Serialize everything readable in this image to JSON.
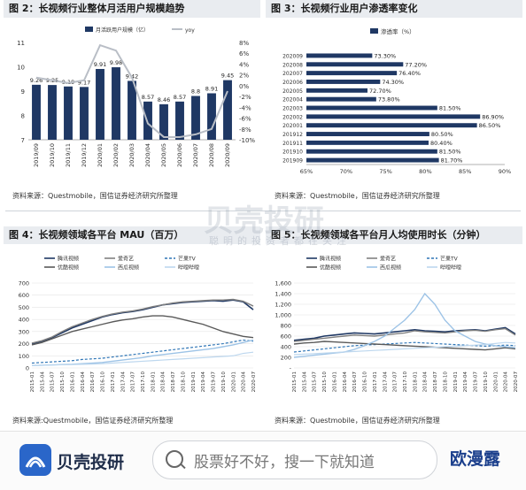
{
  "panels": {
    "p2": {
      "title": "图 2：长视频行业整体月活用户规模趋势",
      "source": "资料来源：Questmobile，国信证券经济研究所整理"
    },
    "p3": {
      "title": "图 3：长视频行业用户渗透率变化",
      "source": "资料来源：Questmobile，国信证券经济研究所整理"
    },
    "p4": {
      "title": "图 4：长视频领域各平台 MAU（百万）",
      "source": "资料来源:Questmobile，国信证券经济研究所整理"
    },
    "p5": {
      "title": "图 5：长视频领域各平台月人均使用时长（分钟）",
      "source": "资料来源：Questmobile，国信证券经济研究所整理"
    }
  },
  "watermark": {
    "main": "贝壳投研",
    "sub": "聪明的投资者都在关注"
  },
  "footer": {
    "logo_text": "贝壳投研",
    "search_placeholder": "股票好不好，搜一下就知道",
    "brand": "欧漫露"
  },
  "colors": {
    "navy": "#1f3864",
    "grey": "#b9bec6",
    "blue_line": "#2e75b6",
    "light_blue": "#9dc3e6",
    "dark": "#333333"
  },
  "chart_data": [
    {
      "id": "mau_trend",
      "type": "bar",
      "legend": [
        "月活跃用户规模（亿）",
        "yoy"
      ],
      "categories": [
        "2019/09",
        "2019/10",
        "2019/11",
        "2019/12",
        "2020/01",
        "2020/02",
        "2020/03",
        "2020/04",
        "2020/05",
        "2020/06",
        "2020/07",
        "2020/08",
        "2020/09"
      ],
      "series": [
        {
          "name": "月活跃用户规模（亿）",
          "values": [
            9.26,
            9.25,
            9.19,
            9.17,
            9.91,
            9.98,
            9.42,
            8.57,
            8.46,
            8.57,
            8.8,
            8.91,
            9.45
          ],
          "axis": "left"
        },
        {
          "name": "yoy",
          "values": [
            1.5,
            1.0,
            0.5,
            1.0,
            7.5,
            6.5,
            1.5,
            -7.0,
            -9.5,
            -9.5,
            -9.0,
            -8.0,
            -1.0
          ],
          "axis": "right"
        }
      ],
      "y_left": {
        "range": [
          7,
          11
        ],
        "ticks": [
          "7",
          "8",
          "9",
          "10",
          "11"
        ]
      },
      "y_right": {
        "range": [
          -10,
          8
        ],
        "ticks": [
          "8%",
          "6%",
          "4%",
          "2%",
          "0%",
          "-2%",
          "-4%",
          "-6%",
          "-8%",
          "-10%"
        ]
      },
      "data_labels": [
        "9.26",
        "9.25",
        "9.19",
        "9.17",
        "9.91",
        "9.98",
        "9.42",
        "8.57",
        "8.46",
        "8.57",
        "8.8",
        "8.91",
        "9.45"
      ]
    },
    {
      "id": "penetration",
      "type": "bar",
      "orientation": "horizontal",
      "legend": [
        "渗透率（%）"
      ],
      "categories": [
        "202009",
        "202008",
        "202007",
        "202006",
        "202005",
        "202004",
        "202003",
        "202002",
        "202001",
        "201912",
        "201911",
        "201910",
        "201909"
      ],
      "values": [
        73.3,
        77.2,
        76.4,
        74.3,
        72.7,
        73.8,
        81.5,
        86.9,
        86.5,
        80.5,
        80.4,
        81.5,
        81.7
      ],
      "data_labels": [
        "73.30%",
        "77.20%",
        "76.40%",
        "74.30%",
        "72.70%",
        "73.80%",
        "81.50%",
        "86.90%",
        "86.50%",
        "80.50%",
        "80.40%",
        "81.50%",
        "81.70%"
      ],
      "x_range": [
        65,
        90
      ],
      "x_ticks": [
        "65%",
        "70%",
        "75%",
        "80%",
        "85%",
        "90%"
      ]
    },
    {
      "id": "platform_mau",
      "type": "line",
      "legend": [
        "腾讯视频",
        "爱奇艺",
        "芒果TV",
        "优酷视频",
        "西瓜视频",
        "哔哩哔哩"
      ],
      "y_range": [
        0,
        700
      ],
      "y_ticks": [
        "0",
        "100",
        "200",
        "300",
        "400",
        "500",
        "600",
        "700"
      ],
      "x_labels": [
        "2015-01",
        "2015-04",
        "2015-07",
        "2015-10",
        "2016-01",
        "2016-04",
        "2016-07",
        "2016-10",
        "2017-01",
        "2017-04",
        "2017-07",
        "2017-10",
        "2018-01",
        "2018-04",
        "2018-07",
        "2018-10",
        "2019-01",
        "2019-04",
        "2019-07",
        "2019-10",
        "2020-01",
        "2020-04",
        "2020-07"
      ],
      "series": [
        {
          "name": "腾讯视频",
          "values": [
            200,
            220,
            250,
            290,
            330,
            360,
            390,
            420,
            440,
            455,
            465,
            480,
            500,
            520,
            530,
            540,
            545,
            550,
            555,
            550,
            560,
            545,
            480
          ]
        },
        {
          "name": "爱奇艺",
          "values": [
            205,
            225,
            255,
            300,
            340,
            370,
            400,
            425,
            445,
            460,
            470,
            485,
            505,
            520,
            535,
            545,
            550,
            555,
            560,
            560,
            565,
            550,
            510
          ]
        },
        {
          "name": "芒果TV",
          "values": [
            40,
            45,
            50,
            55,
            60,
            70,
            75,
            80,
            90,
            100,
            110,
            120,
            130,
            140,
            150,
            160,
            170,
            180,
            190,
            200,
            215,
            230,
            220
          ]
        },
        {
          "name": "优酷视频",
          "values": [
            190,
            210,
            240,
            270,
            300,
            320,
            340,
            360,
            380,
            395,
            405,
            420,
            430,
            430,
            420,
            400,
            380,
            360,
            330,
            300,
            280,
            260,
            250
          ]
        },
        {
          "name": "西瓜视频",
          "values": [
            20,
            22,
            25,
            28,
            30,
            35,
            40,
            45,
            55,
            65,
            75,
            85,
            100,
            110,
            120,
            130,
            140,
            150,
            160,
            175,
            190,
            210,
            230
          ]
        },
        {
          "name": "哔哩哔哩",
          "values": [
            20,
            22,
            24,
            26,
            28,
            30,
            32,
            35,
            40,
            45,
            50,
            55,
            60,
            65,
            70,
            75,
            80,
            85,
            90,
            95,
            100,
            120,
            130
          ]
        }
      ]
    },
    {
      "id": "platform_duration",
      "type": "line",
      "legend": [
        "腾讯视频",
        "爱奇艺",
        "芒果TV",
        "优酷视频",
        "西瓜视频",
        "哔哩哔哩"
      ],
      "y_range": [
        0,
        1600
      ],
      "y_ticks": [
        "-",
        "200",
        "400",
        "600",
        "800",
        "1,000",
        "1,200",
        "1,400",
        "1,600"
      ],
      "x_labels": [
        "2015-01",
        "2015-04",
        "2015-07",
        "2015-10",
        "2016-01",
        "2016-04",
        "2016-07",
        "2016-10",
        "2017-01",
        "2017-04",
        "2017-07",
        "2017-10",
        "2018-01",
        "2018-04",
        "2018-07",
        "2018-10",
        "2019-01",
        "2019-04",
        "2019-07",
        "2019-10",
        "2020-01",
        "2020-04",
        "2020-07"
      ],
      "series": [
        {
          "name": "腾讯视频",
          "values": [
            520,
            540,
            560,
            600,
            620,
            640,
            660,
            650,
            640,
            660,
            680,
            700,
            720,
            700,
            690,
            680,
            700,
            710,
            720,
            700,
            730,
            760,
            640
          ]
        },
        {
          "name": "爱奇艺",
          "values": [
            500,
            520,
            540,
            560,
            580,
            600,
            620,
            610,
            600,
            620,
            640,
            660,
            700,
            680,
            670,
            660,
            680,
            700,
            710,
            690,
            720,
            740,
            620
          ]
        },
        {
          "name": "芒果TV",
          "values": [
            300,
            320,
            340,
            360,
            380,
            400,
            420,
            430,
            440,
            450,
            460,
            470,
            480,
            470,
            460,
            450,
            440,
            430,
            420,
            410,
            420,
            430,
            420
          ]
        },
        {
          "name": "优酷视频",
          "values": [
            450,
            470,
            480,
            500,
            490,
            480,
            470,
            460,
            450,
            440,
            430,
            420,
            410,
            400,
            390,
            380,
            370,
            360,
            350,
            340,
            360,
            380,
            360
          ]
        },
        {
          "name": "西瓜视频",
          "values": [
            200,
            220,
            240,
            260,
            280,
            300,
            350,
            420,
            500,
            600,
            750,
            900,
            1100,
            1400,
            1200,
            900,
            700,
            600,
            500,
            450,
            420,
            400,
            380
          ]
        },
        {
          "name": "哔哩哔哩",
          "values": [
            250,
            260,
            270,
            280,
            290,
            300,
            310,
            320,
            330,
            340,
            350,
            360,
            370,
            380,
            390,
            400,
            410,
            420,
            430,
            440,
            460,
            480,
            470
          ]
        }
      ]
    }
  ]
}
